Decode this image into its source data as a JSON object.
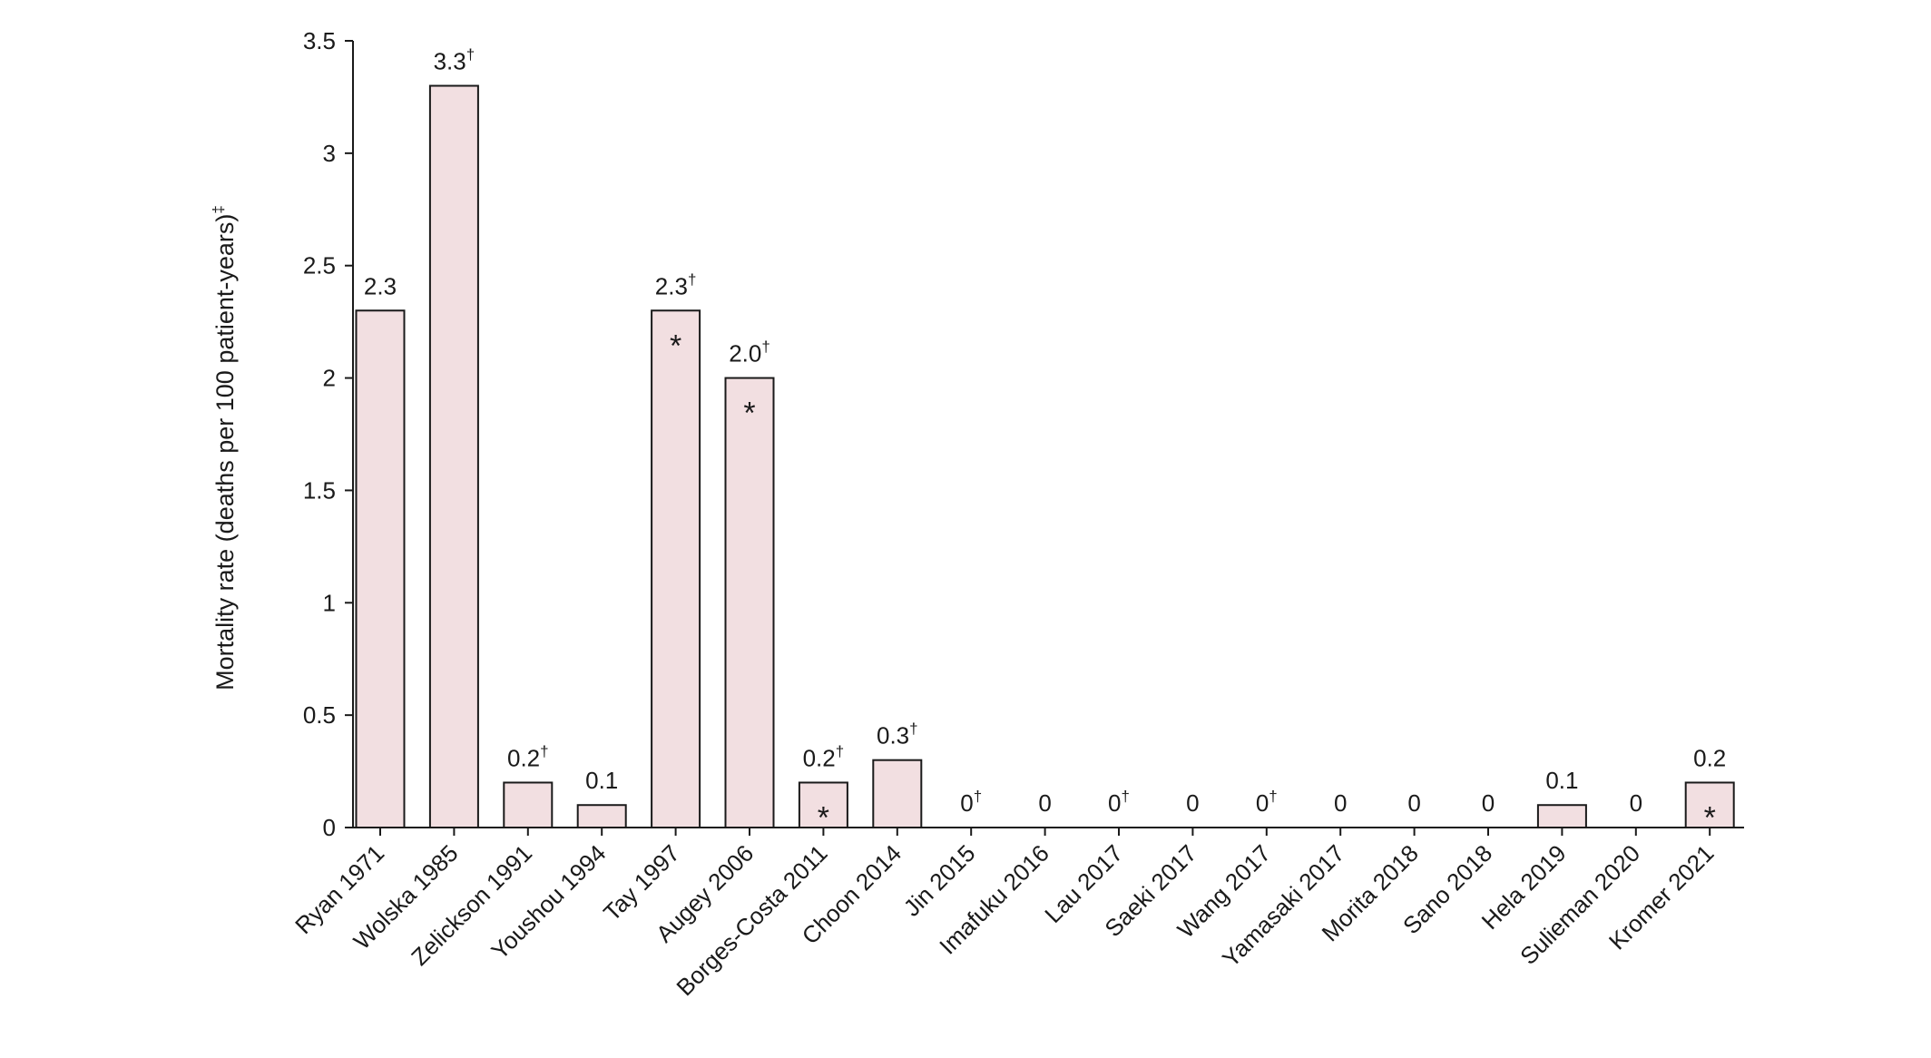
{
  "chart_data": {
    "type": "bar",
    "ylabel": "Mortality rate (deaths per 100 patient-years)",
    "ylabel_superscript": "‡",
    "xlabel": "",
    "ylim": [
      0,
      3.5
    ],
    "yticks": [
      "0",
      "0.5",
      "1",
      "1.5",
      "2",
      "2.5",
      "3",
      "3.5"
    ],
    "ytick_values": [
      0,
      0.5,
      1,
      1.5,
      2,
      2.5,
      3,
      3.5
    ],
    "grid": false,
    "bar_color": "#f2dfe1",
    "bar_edge_color": "#1a1a1a",
    "categories": [
      "Ryan 1971",
      "Wolska 1985",
      "Zelickson 1991",
      "Youshou 1994",
      "Tay 1997",
      "Augey 2006",
      "Borges-Costa 2011",
      "Choon 2014",
      "Jin 2015",
      "Imafuku 2016",
      "Lau 2017",
      "Saeki 2017",
      "Wang 2017",
      "Yamasaki 2017",
      "Morita 2018",
      "Sano 2018",
      "Hela 2019",
      "Sulieman 2020",
      "Kromer 2021"
    ],
    "values": [
      2.3,
      3.3,
      0.2,
      0.1,
      2.3,
      2.0,
      0.2,
      0.3,
      0,
      0,
      0,
      0,
      0,
      0,
      0,
      0,
      0.1,
      0,
      0.2
    ],
    "data_labels": [
      "2.3",
      "3.3",
      "0.2",
      "0.1",
      "2.3",
      "2.0",
      "0.2",
      "0.3",
      "0",
      "0",
      "0",
      "0",
      "0",
      "0",
      "0",
      "0",
      "0.1",
      "0",
      "0.2"
    ],
    "label_superscripts": [
      "",
      "†",
      "†",
      "",
      "†",
      "†",
      "†",
      "†",
      "†",
      "",
      "†",
      "",
      "†",
      "",
      "",
      "",
      "",
      "",
      ""
    ],
    "asterisks": [
      "",
      "",
      "",
      "",
      "*",
      "*",
      "*",
      "",
      "",
      "",
      "",
      "",
      "",
      "",
      "",
      "",
      "",
      "",
      "*"
    ]
  }
}
